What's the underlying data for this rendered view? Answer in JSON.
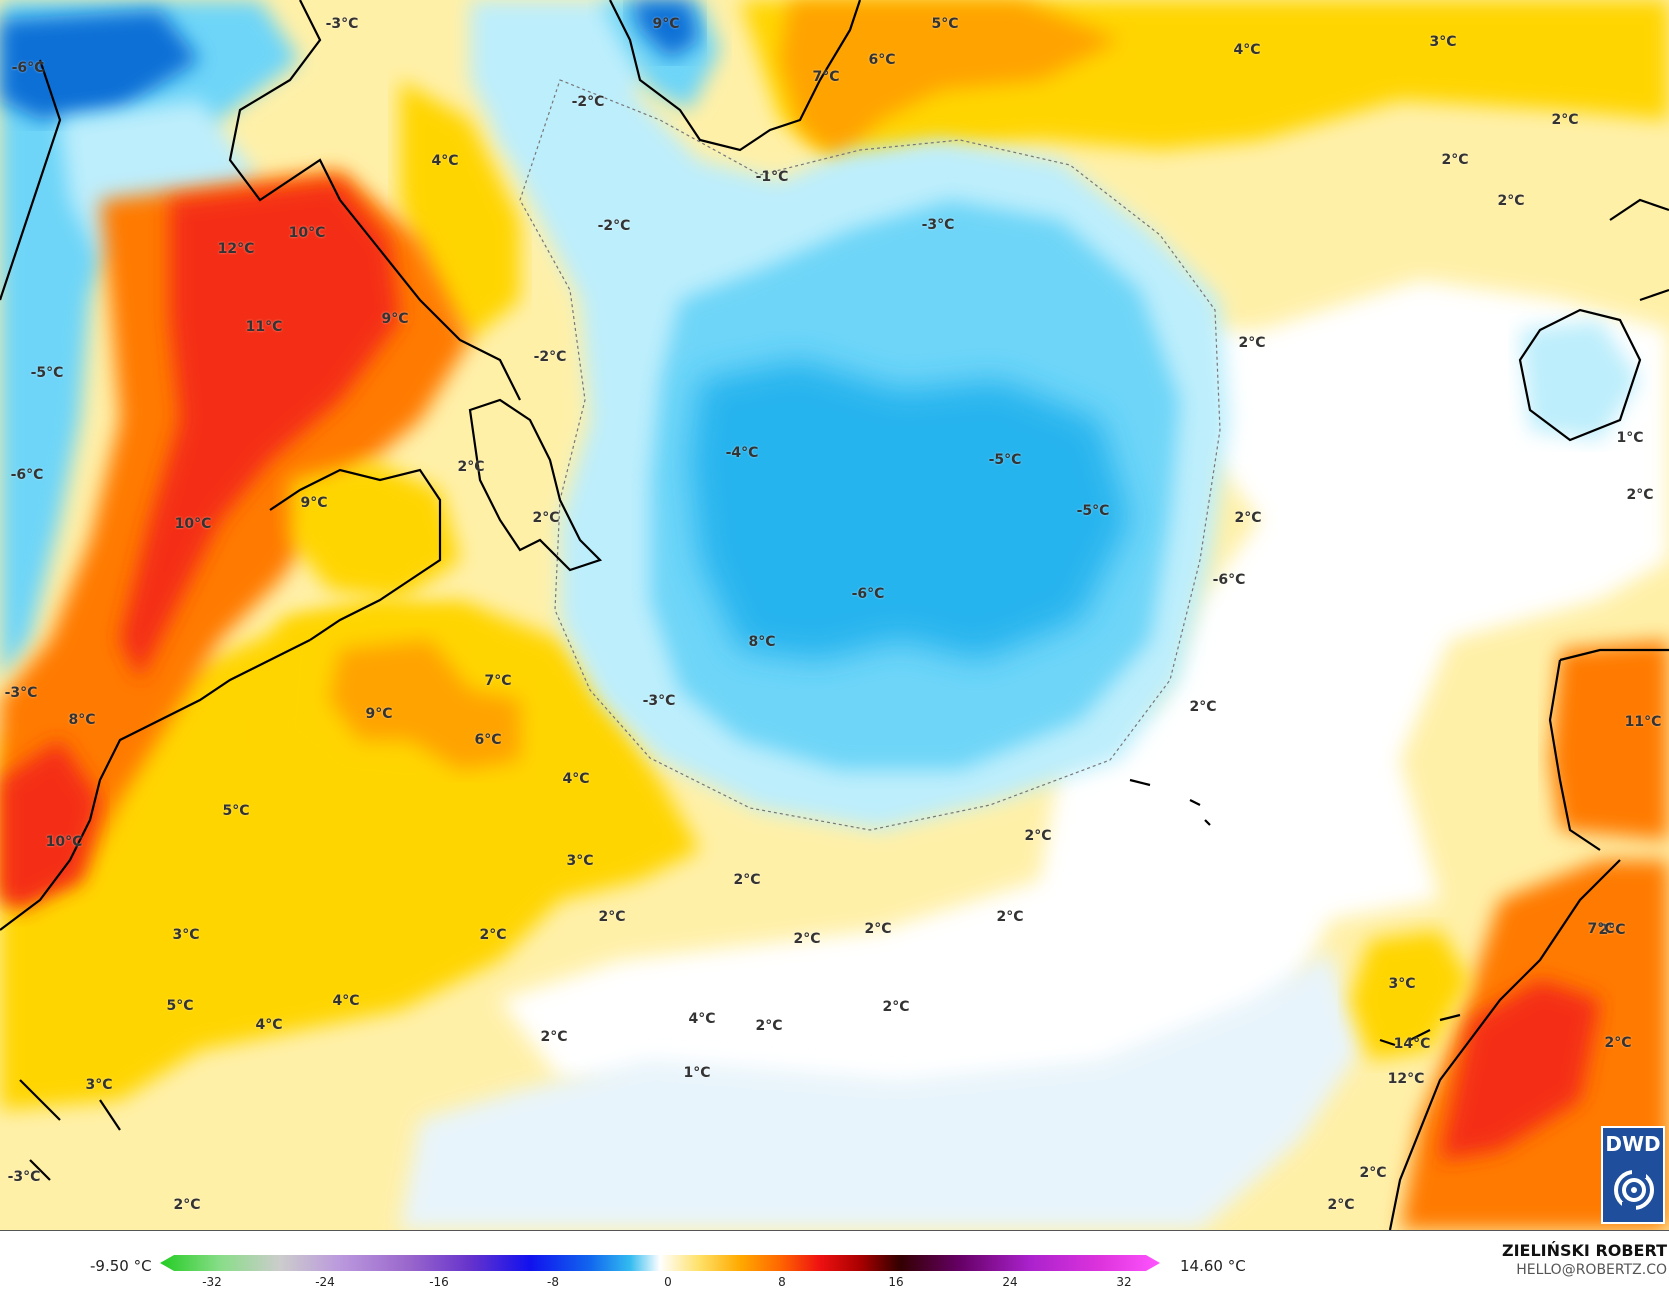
{
  "colors": {
    "light_yellow": "#fff0a8",
    "yellow": "#ffd500",
    "orange": "#ffa300",
    "dark_orange": "#ff7a00",
    "red": "#f42d16",
    "light_blue": "#bdeefc",
    "blue": "#6ed5f8",
    "deep_blue": "#28b4ee",
    "navy": "#0f6fd6",
    "coast": "#000000"
  },
  "map": {
    "labels": [
      "-3°C",
      "9°C",
      "5°C",
      "4°C",
      "3°C",
      "-6°C",
      "-2°C",
      "7°C",
      "6°C",
      "2°C",
      "4°C",
      "-1°C",
      "2°C",
      "2°C",
      "10°C",
      "12°C",
      "-2°C",
      "-3°C",
      "11°C",
      "9°C",
      "-2°C",
      "2°C",
      "-5°C",
      "-4°C",
      "-5°C",
      "1°C",
      "-6°C",
      "2°C",
      "-5°C",
      "2°C",
      "10°C",
      "9°C",
      "2°C",
      "2°C",
      "-6°C",
      "-6°C",
      "8°C",
      "-3°C",
      "-3°C",
      "7°C",
      "9°C",
      "2°C",
      "11°C",
      "6°C",
      "8°C",
      "4°C",
      "5°C",
      "10°C",
      "2°C",
      "3°C",
      "2°C",
      "2°C",
      "2°C",
      "2°C",
      "2°C",
      "2°C",
      "2°C",
      "7°C",
      "3°C",
      "3°C",
      "5°C",
      "4°C",
      "4°C",
      "4°C",
      "2°C",
      "2°C",
      "2°C",
      "14°C",
      "2°C",
      "1°C",
      "12°C",
      "3°C",
      "2°C",
      "2°C",
      "-3°C",
      "2°C"
    ],
    "logo": "DWD"
  },
  "legend": {
    "min": "-9.50 °C",
    "max": "14.60 °C",
    "ticks": [
      "-32",
      "-24",
      "-16",
      "-8",
      "0",
      "8",
      "16",
      "24",
      "32"
    ]
  },
  "author": {
    "name": "ZIELIŃSKI ROBERT",
    "email": "HELLO@ROBERTZ.CO"
  }
}
